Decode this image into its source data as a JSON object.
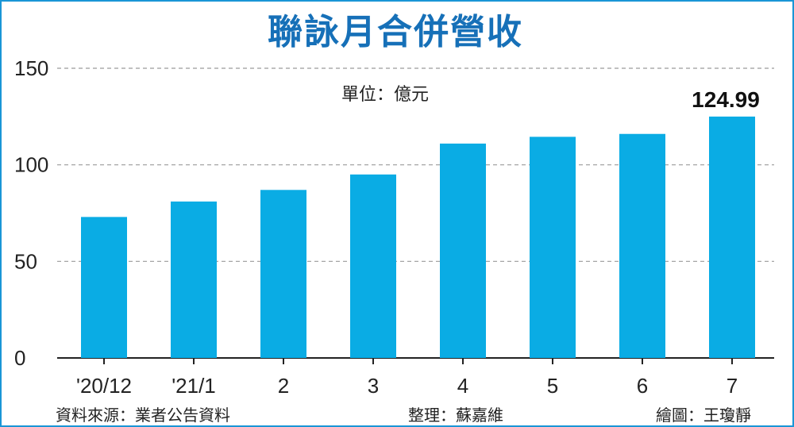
{
  "title": "聯詠月合併營收",
  "unit_note": "單位：億元",
  "footer": {
    "source": "資料來源：業者公告資料",
    "editor": "整理：蘇嘉維",
    "artist": "繪圖：王瓊靜"
  },
  "colors": {
    "title": "#1670b8",
    "bar": "#0aace4",
    "grid": "#9a9a9a",
    "border": "#1a96d6"
  },
  "chart_data": {
    "type": "bar",
    "categories": [
      "'20/12",
      "'21/1",
      "2",
      "3",
      "4",
      "5",
      "6",
      "7"
    ],
    "values": [
      73,
      81,
      87,
      95,
      111,
      114.5,
      116,
      124.99
    ],
    "data_labels": [
      null,
      null,
      null,
      null,
      null,
      null,
      null,
      "124.99"
    ],
    "yticks": [
      "0",
      "50",
      "100",
      "150"
    ],
    "ylim": [
      0,
      150
    ],
    "grid": true,
    "xlabel": "",
    "ylabel": ""
  }
}
